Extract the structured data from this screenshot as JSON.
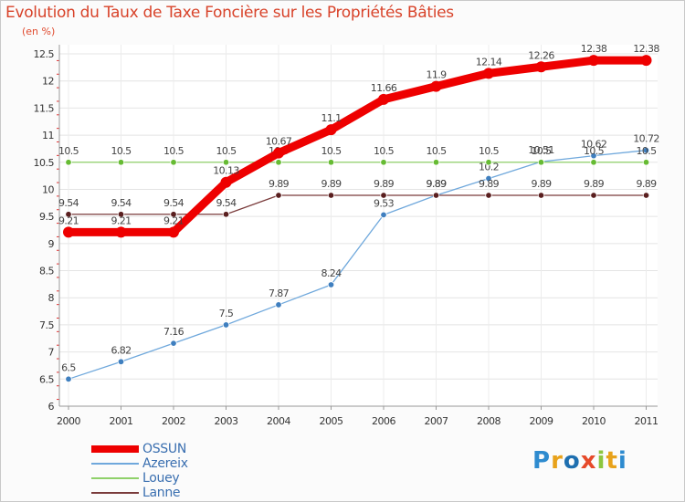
{
  "title": "Evolution du Taux de Taxe Foncière sur les Propriétés Bâties",
  "subtitle": "(en %)",
  "logo": {
    "text": "Proxiti",
    "colors": [
      "#2e8bcf",
      "#e8a21a",
      "#1e6fb0",
      "#e64a2a",
      "#8cc63f",
      "#e8a21a",
      "#2e8bcf"
    ]
  },
  "chart_data": {
    "type": "line",
    "title": "Evolution du Taux de Taxe Foncière sur les Propriétés Bâties",
    "ylabel": "(en %)",
    "xlabel": "",
    "x": [
      2000,
      2001,
      2002,
      2003,
      2004,
      2005,
      2006,
      2007,
      2008,
      2009,
      2010,
      2011
    ],
    "ylim": [
      6,
      12.5
    ],
    "yticks": [
      6,
      6.5,
      7,
      7.5,
      8,
      8.5,
      9,
      9.5,
      10,
      10.5,
      11,
      11.5,
      12,
      12.5
    ],
    "grid": true,
    "legend_position": "bottom-left",
    "series": [
      {
        "name": "OSSUN",
        "color": "#ee0000",
        "emphasis": true,
        "values": [
          9.21,
          9.21,
          9.21,
          10.13,
          10.67,
          11.1,
          11.66,
          11.9,
          12.14,
          12.26,
          12.38,
          12.38
        ]
      },
      {
        "name": "Azereix",
        "color": "#6fa8dc",
        "marker": "#3f7fbf",
        "values": [
          6.5,
          6.82,
          7.16,
          7.5,
          7.87,
          8.24,
          9.53,
          9.89,
          10.2,
          10.51,
          10.62,
          10.72
        ]
      },
      {
        "name": "Louey",
        "color": "#8fd16a",
        "marker": "#66bb33",
        "values": [
          10.5,
          10.5,
          10.5,
          10.5,
          10.5,
          10.5,
          10.5,
          10.5,
          10.5,
          10.5,
          10.5,
          10.5
        ]
      },
      {
        "name": "Lanne",
        "color": "#7a3b3b",
        "marker": "#5a1f1f",
        "values": [
          9.54,
          9.54,
          9.54,
          9.54,
          9.89,
          9.89,
          9.89,
          9.89,
          9.89,
          9.89,
          9.89,
          9.89
        ]
      }
    ]
  }
}
